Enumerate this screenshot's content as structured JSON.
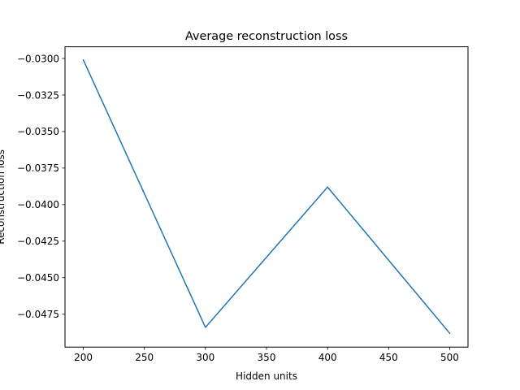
{
  "chart_data": {
    "type": "line",
    "title": "Average reconstruction loss",
    "xlabel": "Hidden units",
    "ylabel": "Reconstruction loss",
    "x": [
      200,
      300,
      400,
      500
    ],
    "series": [
      {
        "values": [
          -0.0301,
          -0.0484,
          -0.0388,
          -0.0488
        ],
        "color": "#1f77b4"
      }
    ],
    "xlim": [
      185,
      515
    ],
    "ylim": [
      -0.04975,
      -0.0292
    ],
    "xticks": [
      200,
      250,
      300,
      350,
      400,
      450,
      500
    ],
    "xtick_labels": [
      "200",
      "250",
      "300",
      "350",
      "400",
      "450",
      "500"
    ],
    "yticks": [
      -0.03,
      -0.0325,
      -0.035,
      -0.0375,
      -0.04,
      -0.0425,
      -0.045,
      -0.0475
    ],
    "ytick_labels": [
      "−0.0300",
      "−0.0325",
      "−0.0350",
      "−0.0375",
      "−0.0400",
      "−0.0425",
      "−0.0450",
      "−0.0475"
    ],
    "grid": false,
    "legend": "none"
  }
}
